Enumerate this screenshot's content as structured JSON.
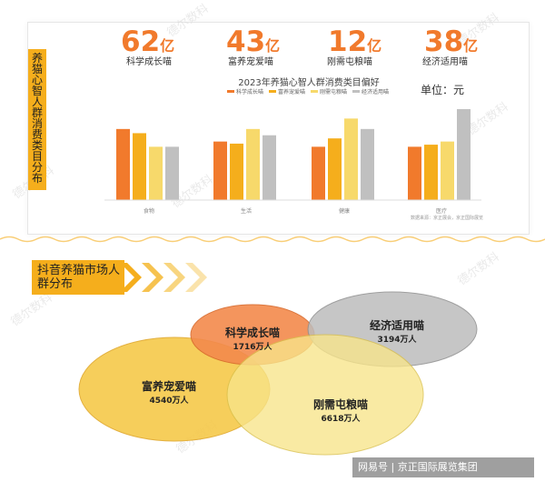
{
  "stats": [
    {
      "value": "62",
      "unit": "亿",
      "label": "科学成长喵"
    },
    {
      "value": "43",
      "unit": "亿",
      "label": "富养宠爱喵"
    },
    {
      "value": "12",
      "unit": "亿",
      "label": "刚需屯粮喵"
    },
    {
      "value": "38",
      "unit": "亿",
      "label": "经济适用喵"
    }
  ],
  "side_title": "养猫心智人群消费类目分布",
  "unit_label": "单位：元",
  "chart_data": {
    "type": "bar",
    "title": "2023年养猫心智人群消费类目偏好",
    "categories": [
      "食物",
      "生活",
      "健康",
      "医疗"
    ],
    "series": [
      {
        "name": "科学成长喵",
        "values": [
          68,
          56,
          51,
          51
        ]
      },
      {
        "name": "富养宠爱喵",
        "values": [
          64,
          54,
          59,
          53
        ]
      },
      {
        "name": "刚需屯粮喵",
        "values": [
          51,
          68,
          78,
          56
        ]
      },
      {
        "name": "经济适用喵",
        "values": [
          51,
          62,
          68,
          87
        ]
      }
    ],
    "colors": [
      "#f17a2c",
      "#f5ae1c",
      "#f7d96b",
      "#c0c0c0"
    ],
    "note": "数据来源：京正展会，京正国际展览"
  },
  "section2_title": "抖音养猫市场人群分布",
  "venn": [
    {
      "name": "科学成长喵",
      "count": "1716万人",
      "color": "#f38a4c"
    },
    {
      "name": "经济适用喵",
      "count": "3194万人",
      "color": "#bdbdbd"
    },
    {
      "name": "富养宠爱喵",
      "count": "4540万人",
      "color": "#f6c94a"
    },
    {
      "name": "刚需屯粮喵",
      "count": "6618万人",
      "color": "#f8e58a"
    }
  ],
  "watermark": "德尔数科",
  "footer": "网易号 | 京正国际展览集团"
}
